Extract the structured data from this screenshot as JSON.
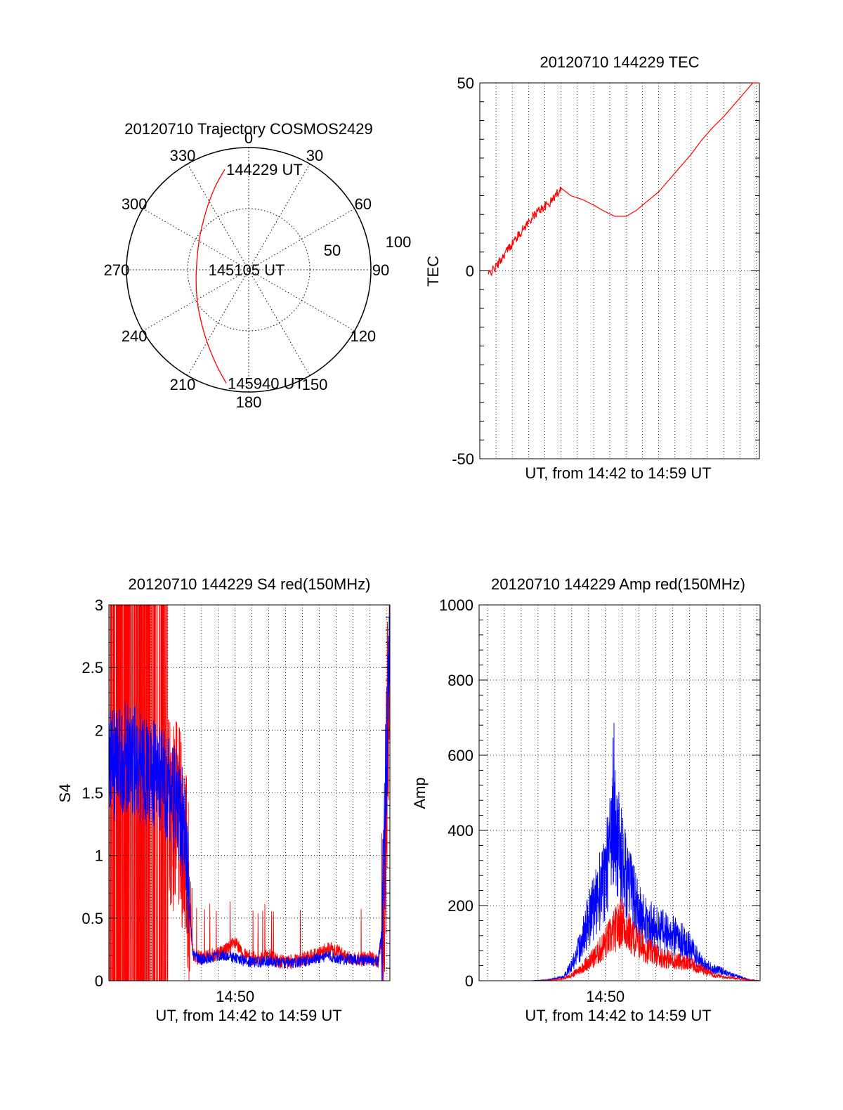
{
  "polar": {
    "title": "20120710 Trajectory COSMOS2429",
    "type": "polar",
    "azimuth_labels": [
      "0",
      "30",
      "60",
      "90",
      "120",
      "150",
      "180",
      "210",
      "240",
      "270",
      "300",
      "330"
    ],
    "radial_labels": [
      "50",
      "100"
    ],
    "trajectory_color": "#ff0000",
    "trajectory": {
      "azimuth_deg": [
        346.6,
        338.4,
        323.8,
        294.9,
        245.0,
        214.7,
        199.2,
        191.2
      ],
      "radius": [
        84.4,
        74.2,
        59.7,
        46.2,
        48.3,
        64.4,
        82.0,
        94.6
      ]
    },
    "annotations": [
      {
        "text": "144229 UT",
        "azimuth_deg": 346.6,
        "radius": 84.4
      },
      {
        "text": "145105 UT",
        "azimuth_deg": 270.0,
        "radius": 33.0
      },
      {
        "text": "145940 UT",
        "azimuth_deg": 191.2,
        "radius": 94.6
      }
    ]
  },
  "chart_data": [
    {
      "type": "line",
      "title": "20120710 144229 TEC",
      "xlabel": "UT, from 14:42 to 14:59 UT",
      "ylabel": "TEC",
      "ylim": [
        -50,
        50
      ],
      "yticks": [
        "-50",
        "0",
        "50"
      ],
      "grid": true,
      "x_unit": "minutes after 14:42 UT",
      "xlim": [
        0,
        17.2
      ],
      "series": [
        {
          "color": "#ff0000",
          "x": [
            0.5,
            1.0,
            1.6,
            2.3,
            3.0,
            3.6,
            4.3,
            5.0,
            5.6,
            6.3,
            7.0,
            7.6,
            8.3,
            9.0,
            9.6,
            10.3,
            11.0,
            11.6,
            12.3,
            13.0,
            13.6,
            14.3,
            15.0,
            15.6,
            16.3,
            17.0,
            17.2
          ],
          "y": [
            -1,
            1,
            5,
            9,
            13,
            16,
            18,
            22,
            20,
            19,
            17.5,
            16,
            14.5,
            14.5,
            16,
            18.5,
            21,
            24,
            27.5,
            31,
            34.5,
            38,
            41,
            44,
            47.5,
            51,
            52.5
          ]
        }
      ]
    },
    {
      "type": "line",
      "title": "20120710 144229 S4 red(150MHz)",
      "xlabel": "UT, from 14:42 to 14:59 UT",
      "ylabel": "S4",
      "ylim": [
        0,
        3
      ],
      "yticks": [
        "0",
        "0.5",
        "1",
        "1.5",
        "2",
        "2.5",
        "3"
      ],
      "xticks": [
        {
          "x": 8.0,
          "label": "14:50"
        }
      ],
      "grid": true,
      "x_unit": "minutes after 14:42 UT",
      "xlim": [
        0.5,
        17.2
      ],
      "series": [
        {
          "color": "#ff0000",
          "x": [
            0.5,
            1.0,
            1.5,
            2.0,
            2.5,
            3.0,
            3.5,
            4.0,
            4.5,
            5.0,
            5.5,
            6.0,
            6.5,
            7.0,
            7.5,
            8.0,
            8.5,
            9.0,
            9.5,
            10.0,
            10.5,
            11.0,
            11.5,
            12.0,
            12.5,
            13.0,
            13.5,
            14.0,
            14.5,
            15.0,
            15.5,
            16.0,
            16.5,
            16.8,
            17.0,
            17.2
          ],
          "y": [
            1.8,
            1.7,
            1.8,
            1.6,
            1.7,
            1.5,
            1.6,
            1.4,
            1.3,
            1.1,
            0.2,
            0.18,
            0.2,
            0.22,
            0.25,
            0.3,
            0.2,
            0.18,
            0.17,
            0.2,
            0.16,
            0.15,
            0.15,
            0.17,
            0.2,
            0.22,
            0.25,
            0.25,
            0.2,
            0.18,
            0.17,
            0.18,
            0.15,
            0.4,
            1.6,
            2.6
          ]
        },
        {
          "color": "#0000ff",
          "x": [
            0.5,
            1.0,
            1.5,
            2.0,
            2.5,
            3.0,
            3.5,
            4.0,
            4.5,
            5.0,
            5.5,
            6.0,
            6.5,
            7.0,
            7.5,
            8.0,
            8.5,
            9.0,
            9.5,
            10.0,
            10.5,
            11.0,
            11.5,
            12.0,
            12.5,
            13.0,
            13.5,
            14.0,
            14.5,
            15.0,
            15.5,
            16.0,
            16.5,
            16.8,
            17.0,
            17.2
          ],
          "y": [
            1.75,
            1.7,
            1.8,
            1.75,
            1.7,
            1.65,
            1.6,
            1.55,
            1.4,
            1.2,
            0.2,
            0.17,
            0.18,
            0.2,
            0.2,
            0.18,
            0.16,
            0.15,
            0.15,
            0.16,
            0.15,
            0.14,
            0.14,
            0.15,
            0.17,
            0.18,
            0.2,
            0.18,
            0.17,
            0.17,
            0.16,
            0.17,
            0.15,
            0.5,
            1.8,
            2.9
          ]
        }
      ]
    },
    {
      "type": "line",
      "title": "20120710 144229 Amp red(150MHz)",
      "xlabel": "UT, from 14:42 to 14:59 UT",
      "ylabel": "Amp",
      "ylim": [
        0,
        1000
      ],
      "yticks": [
        "0",
        "200",
        "400",
        "600",
        "800",
        "1000"
      ],
      "xticks": [
        {
          "x": 8.0,
          "label": "14:50"
        }
      ],
      "grid": true,
      "x_unit": "minutes after 14:42 UT",
      "xlim": [
        0.5,
        17.2
      ],
      "series": [
        {
          "color": "#0000ff",
          "x": [
            0.5,
            2.0,
            3.5,
            4.5,
            5.5,
            6.0,
            6.5,
            7.0,
            7.5,
            8.0,
            8.3,
            8.6,
            9.0,
            9.5,
            10.0,
            10.5,
            11.0,
            11.5,
            12.0,
            12.5,
            13.0,
            13.5,
            14.0,
            14.5,
            15.0,
            15.5,
            16.0,
            16.5,
            17.2
          ],
          "y": [
            0,
            0,
            0,
            2,
            10,
            40,
            90,
            160,
            220,
            280,
            350,
            400,
            310,
            240,
            180,
            150,
            140,
            130,
            120,
            110,
            90,
            60,
            40,
            30,
            25,
            15,
            10,
            3,
            0
          ]
        },
        {
          "color": "#ff0000",
          "x": [
            0.5,
            2.0,
            3.5,
            4.5,
            5.5,
            6.0,
            6.5,
            7.0,
            7.5,
            8.0,
            8.5,
            9.0,
            9.5,
            10.0,
            10.5,
            11.0,
            11.5,
            12.0,
            12.5,
            13.0,
            13.5,
            14.0,
            14.5,
            15.0,
            15.5,
            16.0,
            16.5,
            17.2
          ],
          "y": [
            0,
            0,
            0,
            1,
            5,
            15,
            30,
            50,
            70,
            100,
            130,
            160,
            120,
            100,
            80,
            70,
            60,
            55,
            50,
            45,
            35,
            25,
            15,
            10,
            8,
            5,
            2,
            0
          ]
        }
      ]
    }
  ]
}
